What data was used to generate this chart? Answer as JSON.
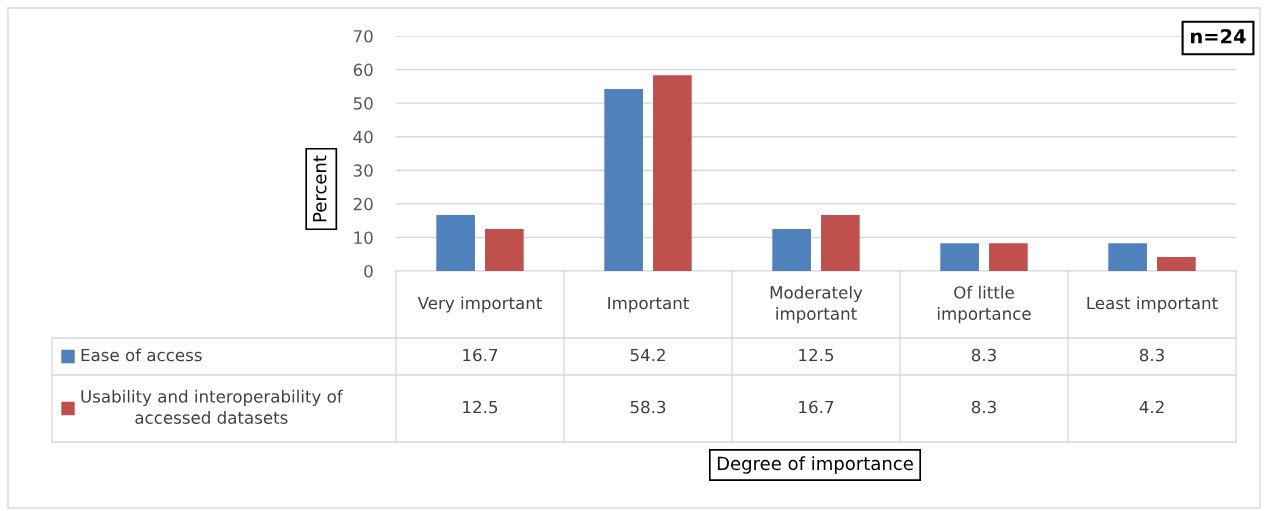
{
  "chart_data": {
    "type": "bar",
    "ylabel": "Percent",
    "categories": [
      "Very important",
      "Important",
      "Moderately important",
      "Of little importance",
      "Least important"
    ],
    "series": [
      {
        "name": "Ease of access",
        "color": "#4f81bd",
        "values": [
          16.7,
          54.2,
          12.5,
          8.3,
          8.3
        ]
      },
      {
        "name": "Usability and interoperability of accessed datasets",
        "color": "#c0504d",
        "values": [
          12.5,
          58.3,
          16.7,
          8.3,
          4.2
        ]
      }
    ],
    "ylim": [
      0,
      70
    ],
    "yticks": [
      0,
      10,
      20,
      30,
      40,
      50,
      60,
      70
    ],
    "grid": "y",
    "legend": "bottom",
    "data_labels": true,
    "annotations": [
      "n=24",
      "Degree of importance"
    ]
  }
}
